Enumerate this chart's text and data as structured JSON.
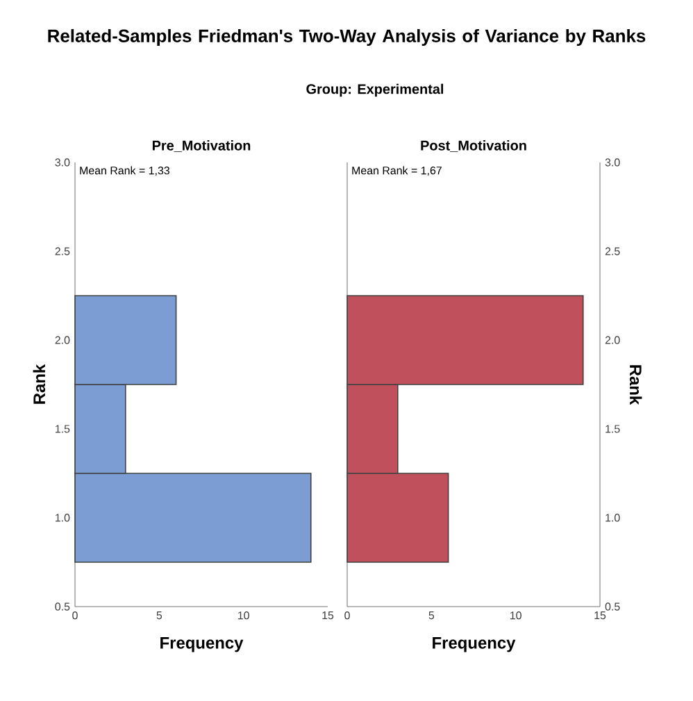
{
  "chart_data": [
    {
      "type": "other",
      "title": "Related-Samples Friedman's Two-Way Analysis of Variance by Ranks",
      "subtitle": "Group: Experimental"
    },
    {
      "type": "histogram",
      "orientation": "horizontal",
      "title": "Pre_Motivation",
      "xlabel": "Frequency",
      "ylabel": "Rank",
      "bins": [
        0.75,
        1.25,
        1.75,
        2.25
      ],
      "values": [
        14,
        3,
        6
      ],
      "color": "#7b9dd3",
      "xlim": [
        0,
        15
      ],
      "xticks": [
        0,
        5,
        10,
        15
      ],
      "ylim": [
        0.5,
        3.0
      ],
      "yticks": [
        {
          "value": 0.5,
          "label": "0.5"
        },
        {
          "value": 1.0,
          "label": "1.0"
        },
        {
          "value": 1.5,
          "label": "1.5"
        },
        {
          "value": 2.0,
          "label": "2.0"
        },
        {
          "value": 2.5,
          "label": "2.5"
        },
        {
          "value": 3.0,
          "label": "3.0"
        }
      ],
      "annotations": [
        "Mean Rank = 1,33"
      ],
      "grid": false
    },
    {
      "type": "histogram",
      "orientation": "horizontal",
      "title": "Post_Motivation",
      "xlabel": "Frequency",
      "ylabel": "Rank",
      "bins": [
        0.75,
        1.25,
        1.75,
        2.25
      ],
      "values": [
        6,
        3,
        14
      ],
      "color": "#c0505c",
      "xlim": [
        0,
        15
      ],
      "xticks": [
        0,
        5,
        10,
        15
      ],
      "ylim": [
        0.5,
        3.0
      ],
      "yticks": [
        {
          "value": 0.5,
          "label": "0.5"
        },
        {
          "value": 1.0,
          "label": "1.0"
        },
        {
          "value": 1.5,
          "label": "1.5"
        },
        {
          "value": 2.0,
          "label": "2.0"
        },
        {
          "value": 2.5,
          "label": "2.5"
        },
        {
          "value": 3.0,
          "label": "3.0"
        }
      ],
      "annotations": [
        "Mean Rank = 1,67"
      ],
      "grid": false
    }
  ]
}
